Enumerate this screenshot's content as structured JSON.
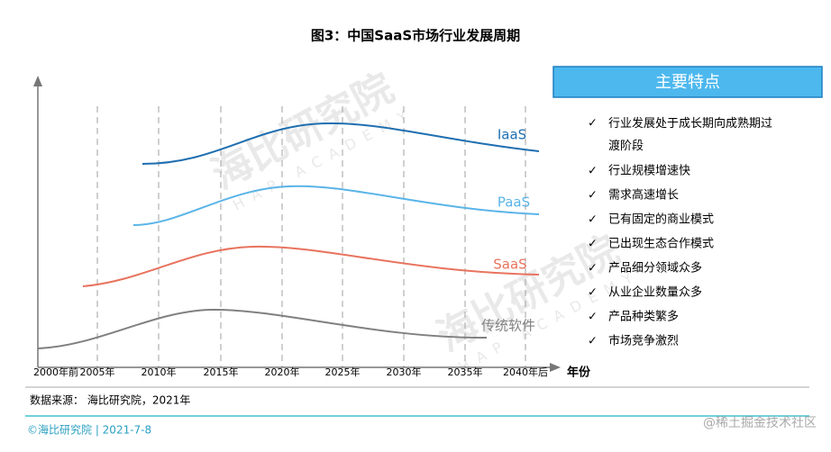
{
  "title": "图3：中国SaaS市场行业发展周期",
  "x_axis": {
    "labels": [
      "2000年前",
      "2005年",
      "2010年",
      "2015年",
      "2020年",
      "2025年",
      "2030年",
      "2035年",
      "2040年后"
    ],
    "title": "年份"
  },
  "curves": [
    "IaaS",
    "PaaS",
    "SaaS",
    "传统软件"
  ],
  "panel": {
    "title": "主要特点",
    "items": [
      "行业发展处于成长期向成熟期过渡阶段",
      "行业规模增速快",
      "需求高速增长",
      "已有固定的商业模式",
      "已出现生态合作模式",
      "产品细分领域众多",
      "从业企业数量众多",
      "产品种类繁多",
      "市场竞争激烈"
    ]
  },
  "source": "数据来源： 海比研究院，2021年",
  "footer": "©海比研究院 | 2021-7-8",
  "credit": "@稀土掘金技术社区",
  "watermark": {
    "name": "海比研究院",
    "sub": "HAP ACADEMY"
  }
}
